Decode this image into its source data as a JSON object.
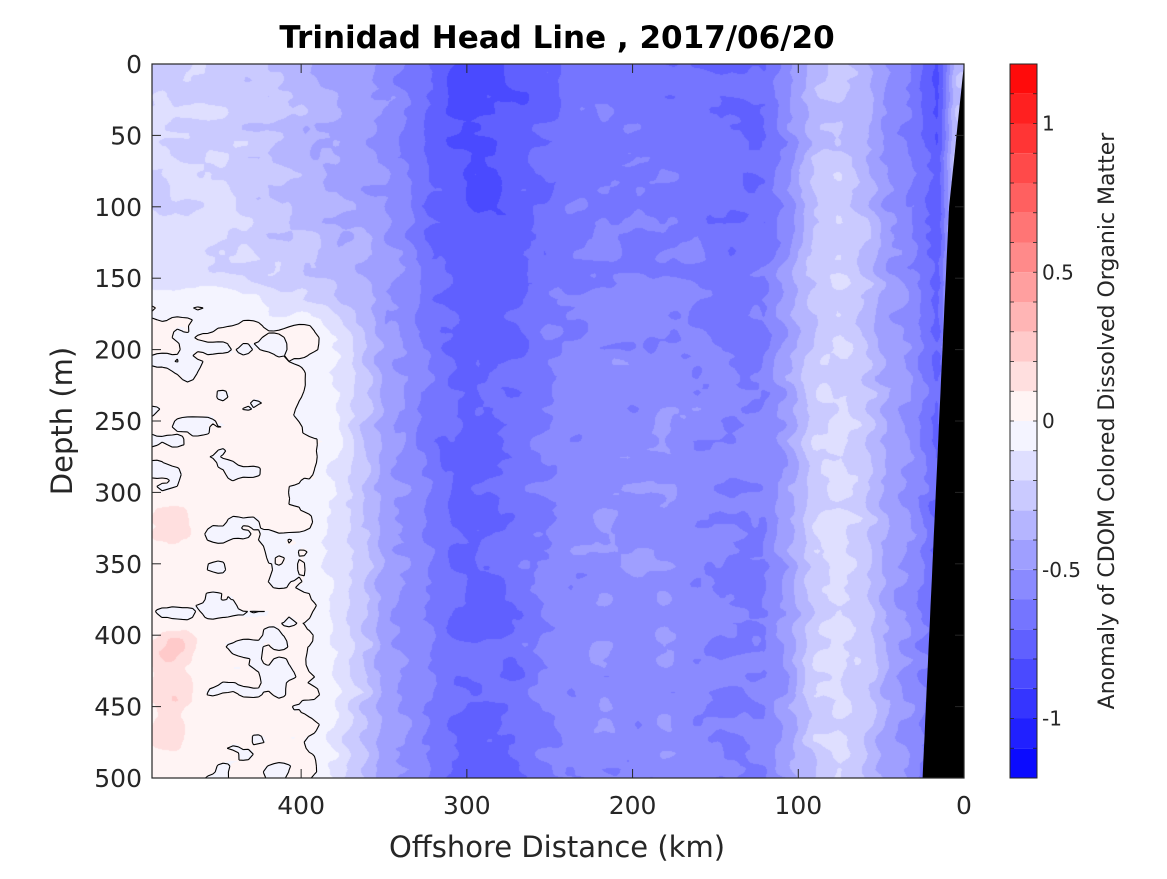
{
  "chart_data": {
    "type": "heatmap",
    "title": "Trinidad Head Line , 2017/06/20",
    "xlabel": "Offshore Distance (km)",
    "ylabel": "Depth (m)",
    "colorbar_label": "Anomaly of CDOM Colored Dissolved Organic Matter",
    "x_direction": "reversed",
    "y_direction": "reversed (depth increases downward)",
    "xlim": [
      0,
      490
    ],
    "ylim": [
      0,
      500
    ],
    "x_ticks": [
      400,
      300,
      200,
      100,
      0
    ],
    "x_tick_labels": [
      "400",
      "300",
      "200",
      "100",
      "0"
    ],
    "y_ticks": [
      0,
      50,
      100,
      150,
      200,
      250,
      300,
      350,
      400,
      450,
      500
    ],
    "y_tick_labels": [
      "0",
      "50",
      "100",
      "150",
      "200",
      "250",
      "300",
      "350",
      "400",
      "450",
      "500"
    ],
    "color_limits": [
      -1.2,
      1.2
    ],
    "color_levels": 24,
    "colorbar_ticks": [
      1,
      0.5,
      0,
      -0.5,
      -1
    ],
    "colorbar_tick_labels": [
      "1",
      "0.5",
      "0",
      "-0.5",
      "-1"
    ],
    "colormap": "blue-white-red",
    "colors": {
      "low": "#0000ff",
      "mid": "#ffffff",
      "high": "#ff0000",
      "seafloor": "#000000"
    },
    "zero_contour": true,
    "seafloor_mask": "black wedge near 0 km, from about 9 km at 100 m depth to about 25 km at 500 m depth",
    "distance_profile": [
      {
        "x": 485,
        "anomaly": -0.12
      },
      {
        "x": 460,
        "anomaly": -0.12
      },
      {
        "x": 440,
        "anomaly": -0.15
      },
      {
        "x": 420,
        "anomaly": -0.2
      },
      {
        "x": 400,
        "anomaly": -0.25
      },
      {
        "x": 380,
        "anomaly": -0.32
      },
      {
        "x": 360,
        "anomaly": -0.4
      },
      {
        "x": 340,
        "anomaly": -0.5
      },
      {
        "x": 320,
        "anomaly": -0.65
      },
      {
        "x": 300,
        "anomaly": -0.75
      },
      {
        "x": 280,
        "anomaly": -0.72
      },
      {
        "x": 260,
        "anomaly": -0.65
      },
      {
        "x": 240,
        "anomaly": -0.58
      },
      {
        "x": 220,
        "anomaly": -0.55
      },
      {
        "x": 200,
        "anomaly": -0.56
      },
      {
        "x": 180,
        "anomaly": -0.55
      },
      {
        "x": 160,
        "anomaly": -0.58
      },
      {
        "x": 140,
        "anomaly": -0.62
      },
      {
        "x": 120,
        "anomaly": -0.6
      },
      {
        "x": 105,
        "anomaly": -0.45
      },
      {
        "x": 90,
        "anomaly": -0.25
      },
      {
        "x": 75,
        "anomaly": -0.18
      },
      {
        "x": 60,
        "anomaly": -0.28
      },
      {
        "x": 45,
        "anomaly": -0.45
      },
      {
        "x": 30,
        "anomaly": -0.55
      },
      {
        "x": 15,
        "anomaly": -0.72
      },
      {
        "x": 5,
        "anomaly": -0.2
      }
    ],
    "depth_profile": [
      {
        "depth": 0,
        "shift": -0.1
      },
      {
        "depth": 50,
        "shift": -0.08
      },
      {
        "depth": 100,
        "shift": -0.06
      },
      {
        "depth": 150,
        "shift": -0.02
      },
      {
        "depth": 200,
        "shift": 0
      },
      {
        "depth": 250,
        "shift": 0.02
      },
      {
        "depth": 300,
        "shift": 0.02
      },
      {
        "depth": 350,
        "shift": 0.03
      },
      {
        "depth": 400,
        "shift": 0.02
      },
      {
        "depth": 450,
        "shift": 0.02
      },
      {
        "depth": 500,
        "shift": 0
      }
    ],
    "near_zero_region": {
      "x_range": [
        350,
        490
      ],
      "depth_range": [
        150,
        500
      ],
      "anomaly": 0.02
    },
    "positive_patches": [
      {
        "x": 480,
        "depth": 410,
        "anomaly": 0.15
      },
      {
        "x": 480,
        "depth": 320,
        "anomaly": 0.12
      },
      {
        "x": 475,
        "depth": 440,
        "anomaly": 0.12
      },
      {
        "x": 480,
        "depth": 470,
        "anomaly": 0.1
      }
    ]
  }
}
